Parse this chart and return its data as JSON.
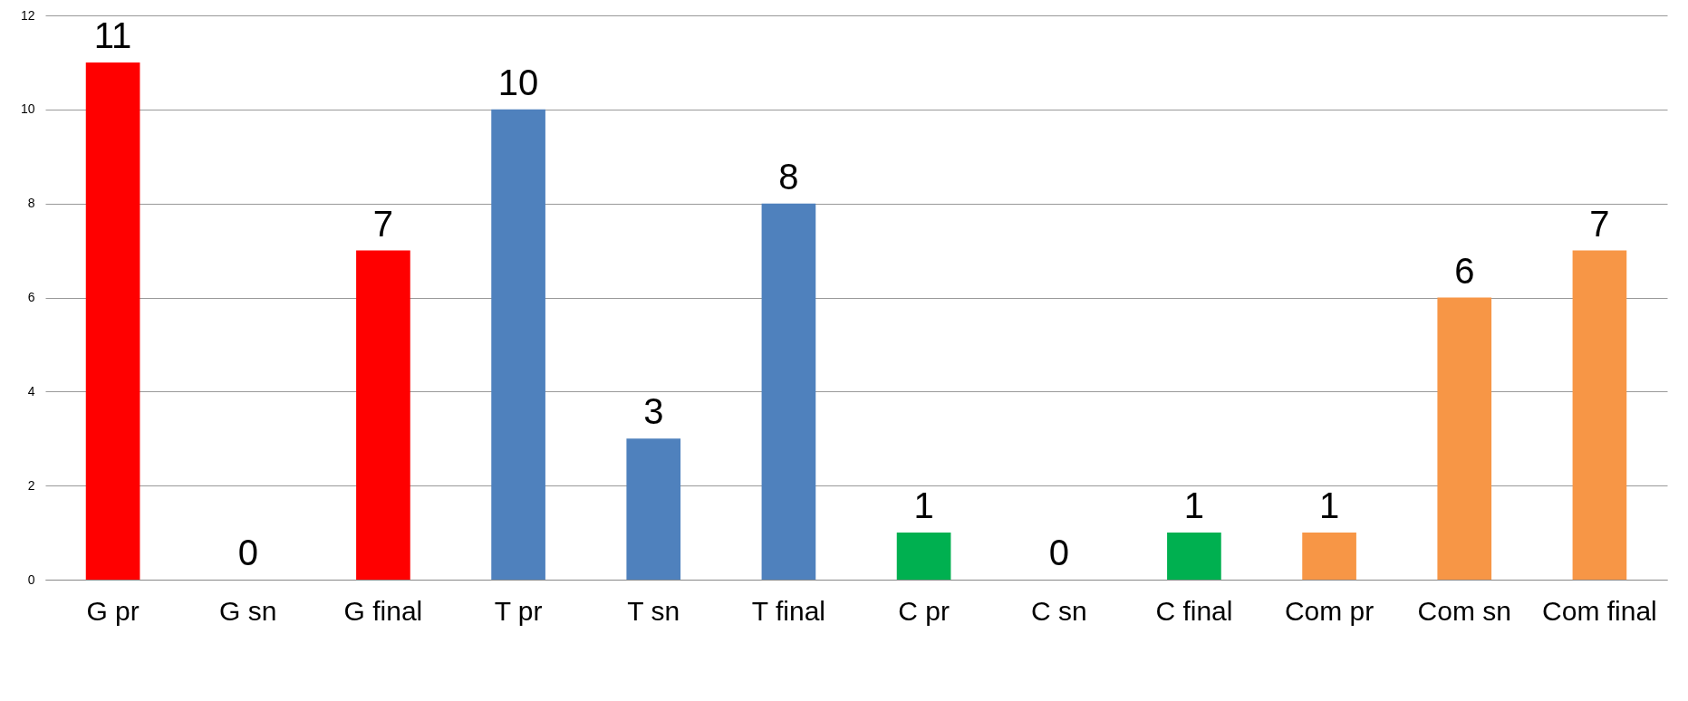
{
  "chart_data": {
    "type": "bar",
    "categories": [
      "G pr",
      "G sn",
      "G final",
      "T pr",
      "T sn",
      "T final",
      "C pr",
      "C sn",
      "C final",
      "Com pr",
      "Com sn",
      "Com final"
    ],
    "values": [
      11,
      0,
      7,
      10,
      3,
      8,
      1,
      0,
      1,
      1,
      6,
      7
    ],
    "colors": [
      "#ff0000",
      "#ff0000",
      "#ff0000",
      "#4f81bd",
      "#4f81bd",
      "#4f81bd",
      "#00b050",
      "#00b050",
      "#00b050",
      "#f79646",
      "#f79646",
      "#f79646"
    ],
    "ylim": [
      0,
      12
    ],
    "yticks": [
      0,
      2,
      4,
      6,
      8,
      10,
      12
    ],
    "grid": "y",
    "data_labels": true
  }
}
